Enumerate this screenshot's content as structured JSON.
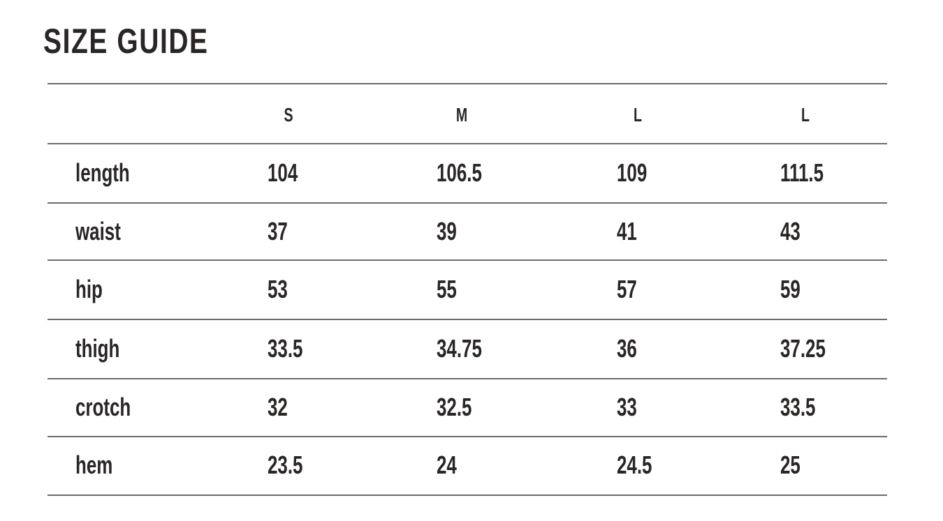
{
  "title": "SIZE GUIDE",
  "table": {
    "headers": [
      "",
      "S",
      "M",
      "L",
      "L"
    ],
    "rows": [
      {
        "label": "length",
        "values": [
          "104",
          "106.5",
          "109",
          "111.5"
        ]
      },
      {
        "label": "waist",
        "values": [
          "37",
          "39",
          "41",
          "43"
        ]
      },
      {
        "label": "hip",
        "values": [
          "53",
          "55",
          "57",
          "59"
        ]
      },
      {
        "label": "thigh",
        "values": [
          "33.5",
          "34.75",
          "36",
          "37.25"
        ]
      },
      {
        "label": "crotch",
        "values": [
          "32",
          "32.5",
          "33",
          "33.5"
        ]
      },
      {
        "label": "hem",
        "values": [
          "23.5",
          "24",
          "24.5",
          "25"
        ]
      }
    ]
  },
  "colors": {
    "text": "#2a2626",
    "rule": "#6e6a6a"
  }
}
